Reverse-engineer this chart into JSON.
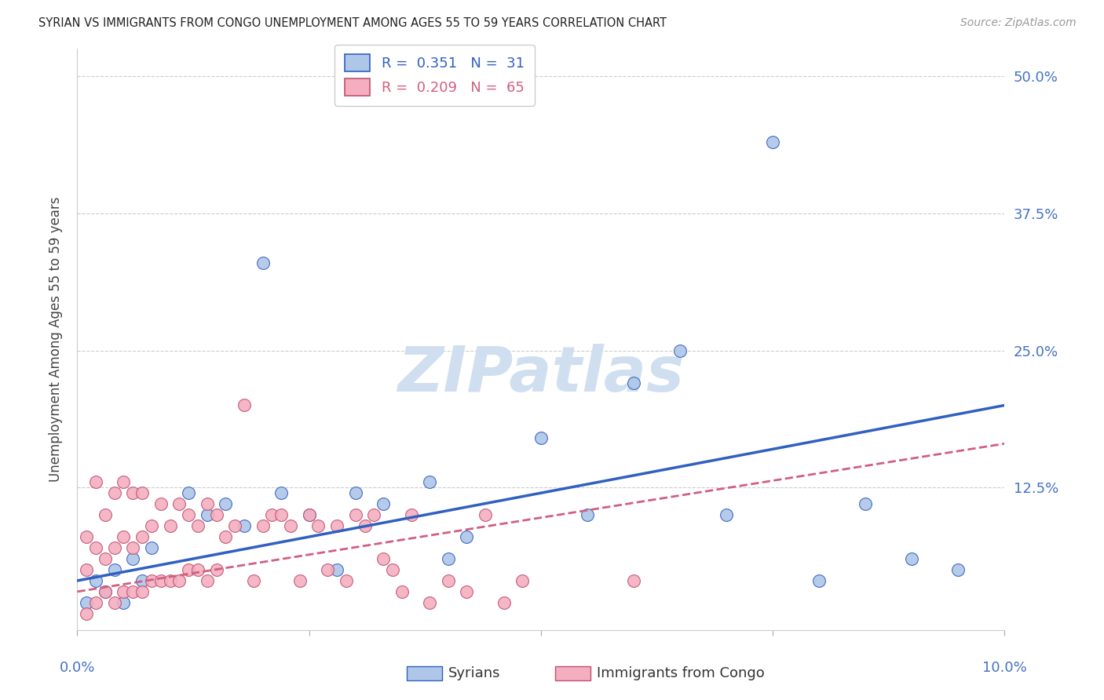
{
  "title": "SYRIAN VS IMMIGRANTS FROM CONGO UNEMPLOYMENT AMONG AGES 55 TO 59 YEARS CORRELATION CHART",
  "source": "Source: ZipAtlas.com",
  "ylabel": "Unemployment Among Ages 55 to 59 years",
  "ytick_labels": [
    "12.5%",
    "25.0%",
    "37.5%",
    "50.0%"
  ],
  "ytick_values": [
    0.125,
    0.25,
    0.375,
    0.5
  ],
  "xlim": [
    0,
    0.1
  ],
  "ylim": [
    -0.005,
    0.525
  ],
  "syrian_color": "#aec6e8",
  "congo_color": "#f4aec0",
  "syrian_line_color": "#3060c0",
  "congo_line_color": "#d06080",
  "watermark": "ZIPatlas",
  "watermark_color": "#d0dff0",
  "syrian_x": [
    0.001,
    0.002,
    0.003,
    0.004,
    0.005,
    0.006,
    0.007,
    0.008,
    0.012,
    0.014,
    0.016,
    0.018,
    0.02,
    0.022,
    0.025,
    0.028,
    0.03,
    0.033,
    0.038,
    0.04,
    0.042,
    0.05,
    0.055,
    0.06,
    0.065,
    0.07,
    0.075,
    0.08,
    0.085,
    0.09,
    0.095
  ],
  "syrian_y": [
    0.02,
    0.04,
    0.03,
    0.05,
    0.02,
    0.06,
    0.04,
    0.07,
    0.12,
    0.1,
    0.11,
    0.09,
    0.33,
    0.12,
    0.1,
    0.05,
    0.12,
    0.11,
    0.13,
    0.06,
    0.08,
    0.17,
    0.1,
    0.22,
    0.25,
    0.1,
    0.44,
    0.04,
    0.11,
    0.06,
    0.05
  ],
  "congo_x": [
    0.001,
    0.001,
    0.001,
    0.002,
    0.002,
    0.002,
    0.003,
    0.003,
    0.003,
    0.004,
    0.004,
    0.004,
    0.005,
    0.005,
    0.005,
    0.006,
    0.006,
    0.006,
    0.007,
    0.007,
    0.007,
    0.008,
    0.008,
    0.009,
    0.009,
    0.01,
    0.01,
    0.011,
    0.011,
    0.012,
    0.012,
    0.013,
    0.013,
    0.014,
    0.014,
    0.015,
    0.015,
    0.016,
    0.017,
    0.018,
    0.019,
    0.02,
    0.021,
    0.022,
    0.023,
    0.024,
    0.025,
    0.026,
    0.027,
    0.028,
    0.029,
    0.03,
    0.031,
    0.032,
    0.033,
    0.034,
    0.035,
    0.036,
    0.038,
    0.04,
    0.042,
    0.044,
    0.046,
    0.048,
    0.06
  ],
  "congo_y": [
    0.01,
    0.05,
    0.08,
    0.02,
    0.07,
    0.13,
    0.03,
    0.06,
    0.1,
    0.02,
    0.07,
    0.12,
    0.03,
    0.08,
    0.13,
    0.03,
    0.07,
    0.12,
    0.03,
    0.08,
    0.12,
    0.04,
    0.09,
    0.04,
    0.11,
    0.04,
    0.09,
    0.04,
    0.11,
    0.05,
    0.1,
    0.05,
    0.09,
    0.04,
    0.11,
    0.05,
    0.1,
    0.08,
    0.09,
    0.2,
    0.04,
    0.09,
    0.1,
    0.1,
    0.09,
    0.04,
    0.1,
    0.09,
    0.05,
    0.09,
    0.04,
    0.1,
    0.09,
    0.1,
    0.06,
    0.05,
    0.03,
    0.1,
    0.02,
    0.04,
    0.03,
    0.1,
    0.02,
    0.04,
    0.04
  ]
}
